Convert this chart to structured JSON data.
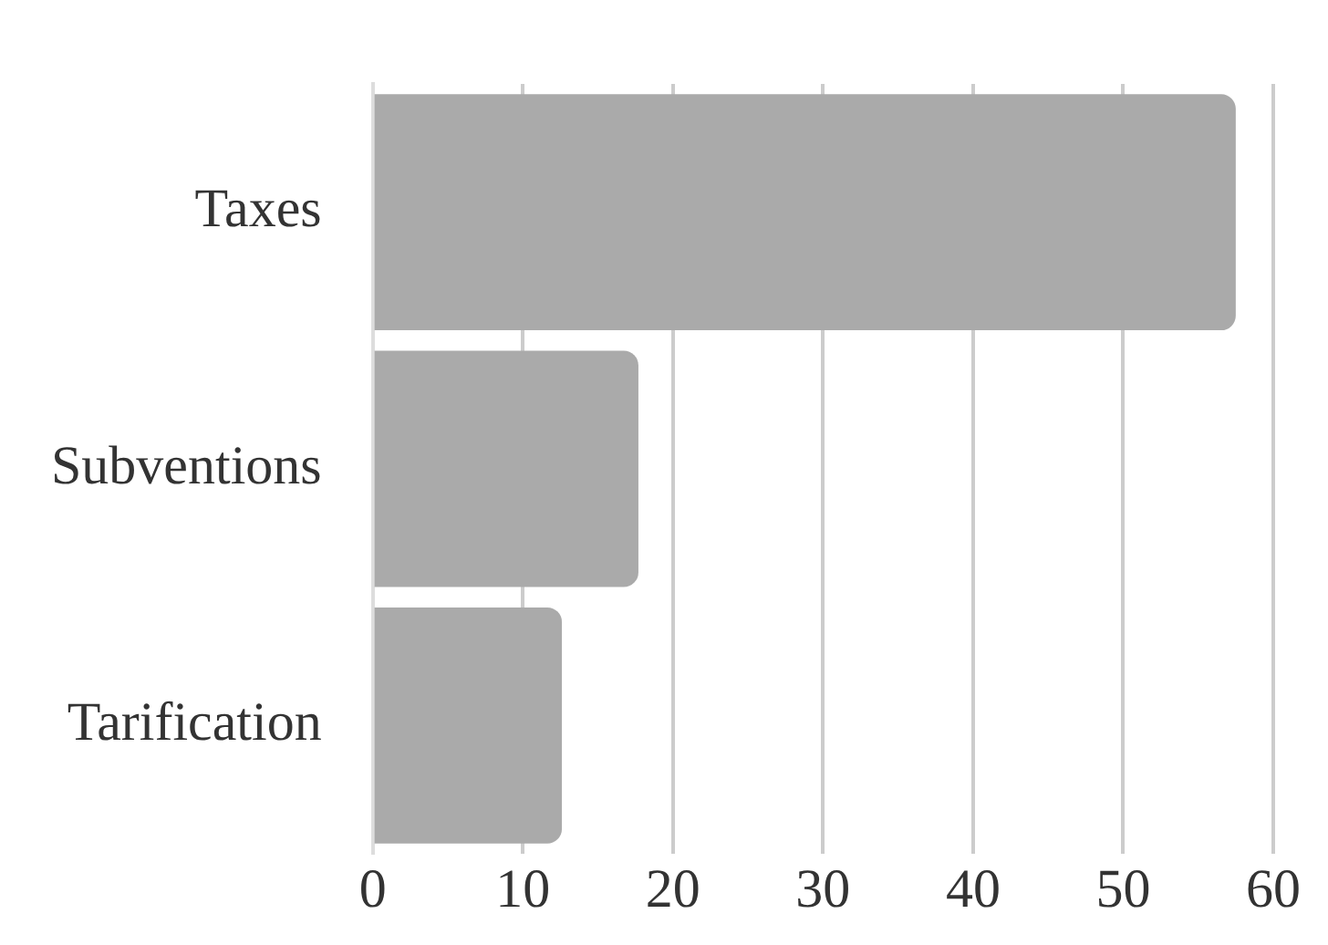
{
  "chart_data": {
    "type": "bar",
    "orientation": "horizontal",
    "categories": [
      "Taxes",
      "Subventions",
      "Tarification"
    ],
    "values": [
      57.5,
      17.7,
      12.6
    ],
    "color": "#aaaaaa",
    "xlim": [
      0,
      60
    ],
    "xticks": [
      0,
      10,
      20,
      30,
      40,
      50,
      60
    ],
    "grid": "x"
  }
}
